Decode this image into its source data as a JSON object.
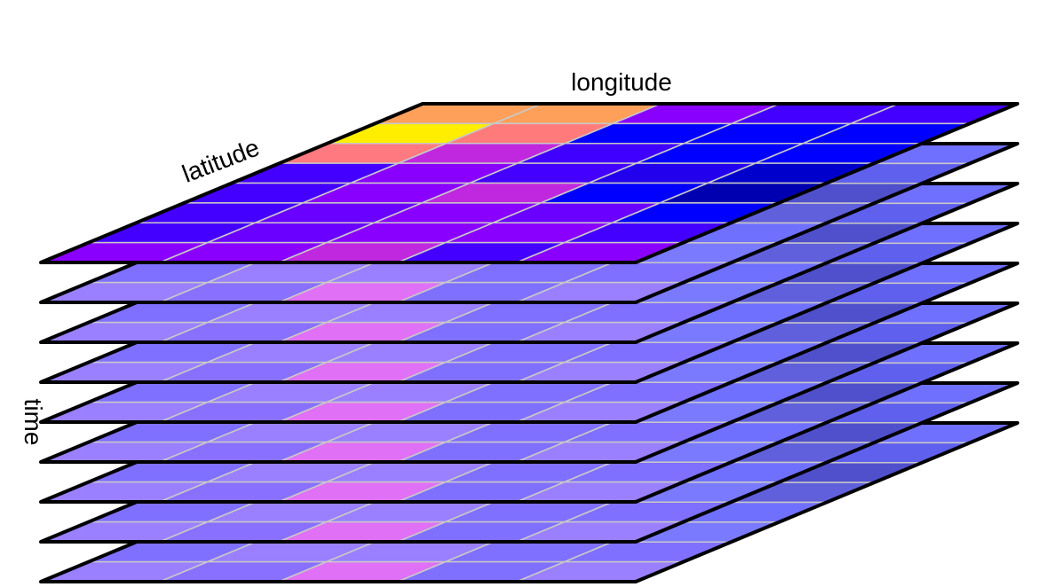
{
  "labels": {
    "longitude": "longitude",
    "latitude": "latitude",
    "time": "time"
  },
  "grid": {
    "rows": 8,
    "cols": 5,
    "layers": 9
  },
  "colors": {
    "outline": "#000000",
    "cell_lines": "#c8c8c8",
    "top_layer": [
      [
        "#ffa05a",
        "#ffa05a",
        "#8a00ff",
        "#4400ff",
        "#4400ff"
      ],
      [
        "#ffee00",
        "#ff7a7a",
        "#0000ff",
        "#0000ff",
        "#0000ff"
      ],
      [
        "#ff7a80",
        "#c028e0",
        "#4000ff",
        "#0000ff",
        "#0000ff"
      ],
      [
        "#4400ff",
        "#8a00ff",
        "#4400ff",
        "#2200ee",
        "#0000cc"
      ],
      [
        "#4400ff",
        "#8a00ff",
        "#c028e0",
        "#0000ff",
        "#0000b0"
      ],
      [
        "#4400ff",
        "#6a00ff",
        "#8a00ff",
        "#6a00ff",
        "#0000ff"
      ],
      [
        "#4400ff",
        "#6a00ff",
        "#8a00ff",
        "#8a00ff",
        "#4400ff"
      ],
      [
        "#8a00ff",
        "#8a00ff",
        "#c028e0",
        "#4400ff",
        "#8a00ff"
      ]
    ],
    "lower_layer": [
      [
        "#7a7aff",
        "#7070ff",
        "#7a70ff",
        "#6a6aff",
        "#7070ff"
      ],
      [
        "#9a80ff",
        "#8a70ff",
        "#7a70ff",
        "#6a6aff",
        "#6060ee"
      ],
      [
        "#8a7aff",
        "#9a80ff",
        "#8070ff",
        "#6a6aff",
        "#5050cc"
      ],
      [
        "#8070ff",
        "#9a80ff",
        "#8070ff",
        "#6a6aff",
        "#6060dd"
      ],
      [
        "#8070ff",
        "#9a80ff",
        "#8070ff",
        "#7070ff",
        "#7070ff"
      ],
      [
        "#8070ff",
        "#9a80ff",
        "#8a70ff",
        "#7070ff",
        "#7a7aff"
      ],
      [
        "#8070ff",
        "#9a80ff",
        "#9a80ff",
        "#8070ff",
        "#8070ff"
      ],
      [
        "#9a80ff",
        "#8a70ff",
        "#e070f5",
        "#8070ff",
        "#9a80ff"
      ]
    ]
  }
}
